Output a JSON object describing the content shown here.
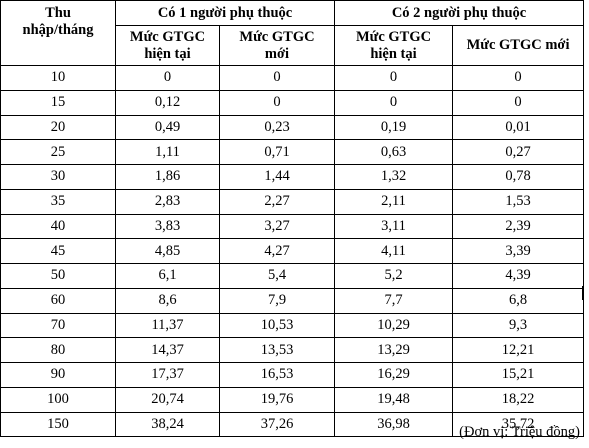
{
  "header": {
    "income_label": "Thu nhập/tháng",
    "group1": "Có 1 người phụ thuộc",
    "group2": "Có 2  người phụ thuộc",
    "g1_current": "Mức GTGC hiện tại",
    "g1_new": "Mức GTGC mới",
    "g2_current": "Mức GTGC hiện tại",
    "g2_new": "Mức GTGC mới"
  },
  "rows": [
    [
      "10",
      "0",
      "0",
      "0",
      "0"
    ],
    [
      "15",
      "0,12",
      "0",
      "0",
      "0"
    ],
    [
      "20",
      "0,49",
      "0,23",
      "0,19",
      "0,01"
    ],
    [
      "25",
      "1,11",
      "0,71",
      "0,63",
      "0,27"
    ],
    [
      "30",
      "1,86",
      "1,44",
      "1,32",
      "0,78"
    ],
    [
      "35",
      "2,83",
      "2,27",
      "2,11",
      "1,53"
    ],
    [
      "40",
      "3,83",
      "3,27",
      "3,11",
      "2,39"
    ],
    [
      "45",
      "4,85",
      "4,27",
      "4,11",
      "3,39"
    ],
    [
      "50",
      "6,1",
      "5,4",
      "5,2",
      "4,39"
    ],
    [
      "60",
      "8,6",
      "7,9",
      "7,7",
      "6,8"
    ],
    [
      "70",
      "11,37",
      "10,53",
      "10,29",
      "9,3"
    ],
    [
      "80",
      "14,37",
      "13,53",
      "13,29",
      "12,21"
    ],
    [
      "90",
      "17,37",
      "16,53",
      "16,29",
      "15,21"
    ],
    [
      "100",
      "20,74",
      "19,76",
      "19,48",
      "18,22"
    ],
    [
      "150",
      "38,24",
      "37,26",
      "36,98",
      "35,72"
    ]
  ],
  "unit_note": "(Đơn vị: Triệu đồng)"
}
